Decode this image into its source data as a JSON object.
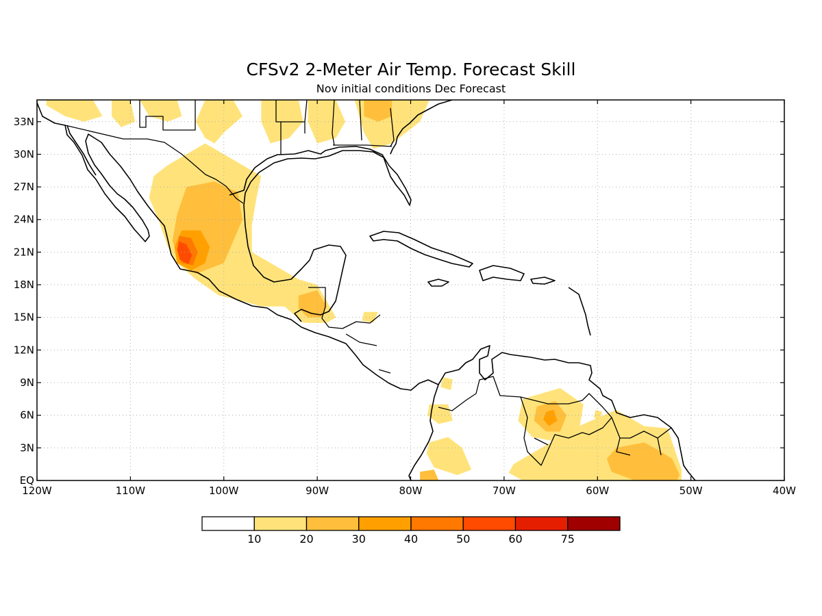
{
  "title": "CFSv2 2-Meter Air Temp. Forecast Skill",
  "subtitle": "Nov initial conditions  Dec Forecast",
  "map": {
    "lon_range": [
      -120,
      -40
    ],
    "lat_range": [
      0,
      35
    ],
    "lon_ticks": [
      {
        "value": -120,
        "label": "120W"
      },
      {
        "value": -110,
        "label": "110W"
      },
      {
        "value": -100,
        "label": "100W"
      },
      {
        "value": -90,
        "label": "90W"
      },
      {
        "value": -80,
        "label": "80W"
      },
      {
        "value": -70,
        "label": "70W"
      },
      {
        "value": -60,
        "label": "60W"
      },
      {
        "value": -50,
        "label": "50W"
      },
      {
        "value": -40,
        "label": "40W"
      }
    ],
    "lat_ticks": [
      {
        "value": 0,
        "label": "EQ"
      },
      {
        "value": 3,
        "label": "3N"
      },
      {
        "value": 6,
        "label": "6N"
      },
      {
        "value": 9,
        "label": "9N"
      },
      {
        "value": 12,
        "label": "12N"
      },
      {
        "value": 15,
        "label": "15N"
      },
      {
        "value": 18,
        "label": "18N"
      },
      {
        "value": 21,
        "label": "21N"
      },
      {
        "value": 24,
        "label": "24N"
      },
      {
        "value": 27,
        "label": "27N"
      },
      {
        "value": 30,
        "label": "30N"
      },
      {
        "value": 33,
        "label": "33N"
      }
    ]
  },
  "colorbar": {
    "colors": [
      "#ffffff",
      "#ffe37a",
      "#ffbf3c",
      "#ffa000",
      "#ff7800",
      "#ff4b00",
      "#e61e00",
      "#a00000"
    ],
    "labels": [
      "10",
      "20",
      "30",
      "40",
      "50",
      "60",
      "75"
    ]
  },
  "skill_regions": [
    {
      "level": 1,
      "poly": [
        [
          -119,
          35
        ],
        [
          -114,
          35
        ],
        [
          -113,
          33.5
        ],
        [
          -115,
          33
        ],
        [
          -117,
          33.5
        ],
        [
          -119,
          34.5
        ]
      ]
    },
    {
      "level": 1,
      "poly": [
        [
          -112,
          35
        ],
        [
          -110,
          35
        ],
        [
          -109.5,
          33
        ],
        [
          -111,
          32.5
        ],
        [
          -112,
          33.5
        ]
      ]
    },
    {
      "level": 1,
      "poly": [
        [
          -109,
          35
        ],
        [
          -105,
          35
        ],
        [
          -104.5,
          33.5
        ],
        [
          -106,
          33
        ],
        [
          -108,
          33.5
        ]
      ]
    },
    {
      "level": 1,
      "poly": [
        [
          -102,
          35
        ],
        [
          -99,
          35
        ],
        [
          -98,
          33.5
        ],
        [
          -100,
          32
        ],
        [
          -101,
          31
        ],
        [
          -102,
          31.5
        ],
        [
          -103,
          33
        ]
      ]
    },
    {
      "level": 1,
      "poly": [
        [
          -96,
          35
        ],
        [
          -92,
          35
        ],
        [
          -91.5,
          33
        ],
        [
          -93,
          31.5
        ],
        [
          -95,
          31
        ],
        [
          -96,
          33
        ]
      ]
    },
    {
      "level": 1,
      "poly": [
        [
          -91,
          35
        ],
        [
          -88,
          35
        ],
        [
          -87,
          33
        ],
        [
          -88,
          31.5
        ],
        [
          -90,
          31
        ],
        [
          -91,
          33
        ]
      ]
    },
    {
      "level": 1,
      "poly": [
        [
          -86,
          35
        ],
        [
          -78,
          35
        ],
        [
          -79,
          33
        ],
        [
          -80.5,
          32
        ],
        [
          -82,
          31
        ],
        [
          -84,
          30.5
        ],
        [
          -85,
          32
        ]
      ]
    },
    {
      "level": 2,
      "poly": [
        [
          -85,
          35
        ],
        [
          -82,
          35
        ],
        [
          -82,
          33.5
        ],
        [
          -83.5,
          33
        ],
        [
          -85,
          33.5
        ]
      ]
    },
    {
      "level": 1,
      "poly": [
        [
          -106,
          29
        ],
        [
          -104,
          30
        ],
        [
          -102,
          31
        ],
        [
          -99,
          29.5
        ],
        [
          -96,
          28
        ],
        [
          -96.5,
          26
        ],
        [
          -97,
          23.5
        ],
        [
          -97,
          21
        ],
        [
          -95,
          20
        ],
        [
          -92,
          18.5
        ],
        [
          -90,
          18
        ],
        [
          -89,
          16.5
        ],
        [
          -88,
          15
        ],
        [
          -89,
          14.5
        ],
        [
          -91.5,
          14.5
        ],
        [
          -93.5,
          16
        ],
        [
          -96,
          16
        ],
        [
          -98,
          16.5
        ],
        [
          -100.5,
          17
        ],
        [
          -103,
          18.5
        ],
        [
          -105,
          20
        ],
        [
          -106,
          21.5
        ],
        [
          -107,
          24
        ],
        [
          -108,
          26
        ],
        [
          -107.5,
          28
        ]
      ]
    },
    {
      "level": 2,
      "poly": [
        [
          -104,
          27
        ],
        [
          -101,
          27.5
        ],
        [
          -98.5,
          26.5
        ],
        [
          -98,
          24
        ],
        [
          -99,
          22
        ],
        [
          -100,
          20
        ],
        [
          -101.5,
          19.5
        ],
        [
          -103,
          19
        ],
        [
          -104.5,
          20
        ],
        [
          -105.5,
          22
        ],
        [
          -105,
          24.5
        ]
      ]
    },
    {
      "level": 3,
      "poly": [
        [
          -104.5,
          23
        ],
        [
          -102.5,
          23
        ],
        [
          -101.5,
          21.5
        ],
        [
          -102,
          20
        ],
        [
          -103.5,
          19.3
        ],
        [
          -105,
          20
        ],
        [
          -105.3,
          21.5
        ]
      ]
    },
    {
      "level": 4,
      "poly": [
        [
          -104.8,
          22.5
        ],
        [
          -103.5,
          22.3
        ],
        [
          -102.8,
          21
        ],
        [
          -103.3,
          19.8
        ],
        [
          -104.5,
          20
        ],
        [
          -105,
          21.2
        ]
      ]
    },
    {
      "level": 5,
      "poly": [
        [
          -104.8,
          22
        ],
        [
          -104,
          21.7
        ],
        [
          -103.4,
          20.7
        ],
        [
          -103.8,
          19.9
        ],
        [
          -104.7,
          20.3
        ],
        [
          -105,
          21.2
        ]
      ]
    },
    {
      "level": 2,
      "poly": [
        [
          -92,
          17
        ],
        [
          -90,
          17.5
        ],
        [
          -89,
          16
        ],
        [
          -89.5,
          15
        ],
        [
          -91,
          15
        ],
        [
          -92,
          15.8
        ]
      ]
    },
    {
      "level": 1,
      "poly": [
        [
          -85,
          15.5
        ],
        [
          -83.5,
          15.5
        ],
        [
          -84,
          14.5
        ],
        [
          -85.2,
          14.7
        ]
      ]
    },
    {
      "level": 1,
      "poly": [
        [
          -76.5,
          9.5
        ],
        [
          -75.5,
          9.3
        ],
        [
          -75.7,
          8.3
        ],
        [
          -76.8,
          8.6
        ]
      ]
    },
    {
      "level": 1,
      "poly": [
        [
          -78,
          7
        ],
        [
          -76,
          7
        ],
        [
          -75.5,
          5.5
        ],
        [
          -77,
          5.2
        ],
        [
          -78.2,
          6
        ]
      ]
    },
    {
      "level": 1,
      "poly": [
        [
          -78,
          3.5
        ],
        [
          -76,
          4
        ],
        [
          -74.5,
          3
        ],
        [
          -73.5,
          1
        ],
        [
          -75,
          0.5
        ],
        [
          -77.5,
          1.2
        ],
        [
          -78.3,
          2.5
        ]
      ]
    },
    {
      "level": 2,
      "poly": [
        [
          -79,
          0.8
        ],
        [
          -77.5,
          1
        ],
        [
          -77,
          0
        ],
        [
          -79,
          0
        ]
      ]
    },
    {
      "level": 1,
      "poly": [
        [
          -68,
          7.5
        ],
        [
          -64,
          8.5
        ],
        [
          -61.5,
          7
        ],
        [
          -62,
          4.5
        ],
        [
          -64,
          3.5
        ],
        [
          -67,
          4
        ],
        [
          -68.5,
          5.5
        ]
      ]
    },
    {
      "level": 2,
      "poly": [
        [
          -66.5,
          6.8
        ],
        [
          -64.5,
          7.3
        ],
        [
          -63.3,
          6
        ],
        [
          -64,
          4.5
        ],
        [
          -65.5,
          4.5
        ],
        [
          -66.8,
          5.5
        ]
      ]
    },
    {
      "level": 3,
      "poly": [
        [
          -65.5,
          6.3
        ],
        [
          -64.7,
          6.5
        ],
        [
          -64.3,
          5.5
        ],
        [
          -65.2,
          5
        ],
        [
          -65.8,
          5.6
        ]
      ]
    },
    {
      "level": 1,
      "poly": [
        [
          -69,
          1.5
        ],
        [
          -66,
          3
        ],
        [
          -62,
          5
        ],
        [
          -58,
          6.5
        ],
        [
          -55,
          5
        ],
        [
          -52.5,
          4.8
        ],
        [
          -52,
          3.5
        ],
        [
          -51,
          1
        ],
        [
          -51,
          0
        ],
        [
          -68,
          0
        ],
        [
          -69.5,
          0.7
        ]
      ]
    },
    {
      "level": 2,
      "poly": [
        [
          -58,
          3
        ],
        [
          -55,
          3.5
        ],
        [
          -53.5,
          2.8
        ],
        [
          -52,
          2
        ],
        [
          -51.2,
          0.5
        ],
        [
          -51.5,
          0
        ],
        [
          -56,
          0
        ],
        [
          -58.5,
          0.8
        ],
        [
          -59,
          2
        ]
      ]
    },
    {
      "level": 1,
      "poly": [
        [
          -60.2,
          6.5
        ],
        [
          -59.5,
          6.3
        ],
        [
          -59.7,
          5.5
        ],
        [
          -60.4,
          5.8
        ]
      ]
    }
  ]
}
